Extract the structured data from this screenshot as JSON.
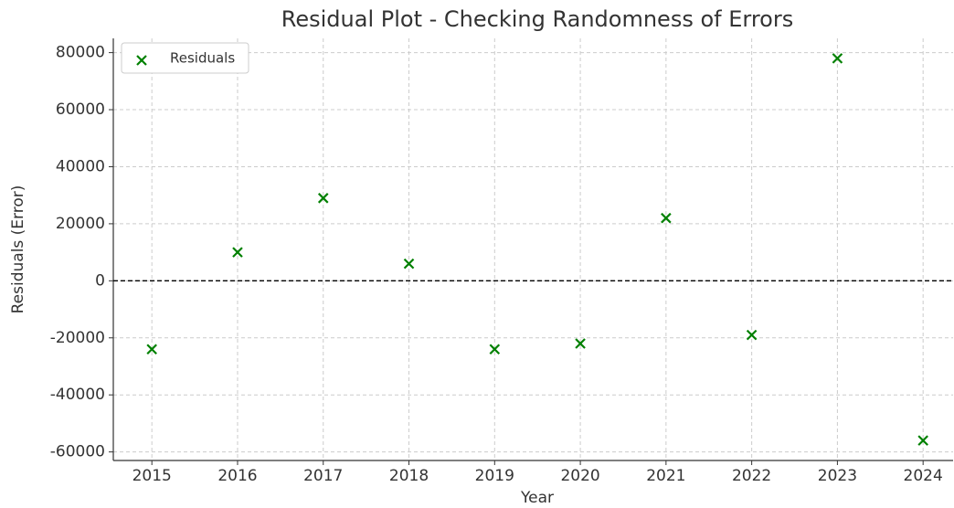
{
  "chart_data": {
    "type": "scatter",
    "title": "Residual Plot - Checking Randomness of Errors",
    "xlabel": "Year",
    "ylabel": "Residuals (Error)",
    "x": [
      2015,
      2016,
      2017,
      2018,
      2019,
      2020,
      2021,
      2022,
      2023,
      2024
    ],
    "series": [
      {
        "name": "Residuals",
        "color": "#008000",
        "marker": "x",
        "values": [
          -24000,
          10000,
          29000,
          6000,
          -24000,
          -22000,
          22000,
          -19000,
          78000,
          -56000
        ]
      }
    ],
    "xlim": [
      2014.55,
      2024.35
    ],
    "xticks": [
      2015,
      2016,
      2017,
      2018,
      2019,
      2020,
      2021,
      2022,
      2023,
      2024
    ],
    "ylim": [
      -63000,
      85000
    ],
    "yticks": [
      -60000,
      -40000,
      -20000,
      0,
      20000,
      40000,
      60000,
      80000
    ],
    "grid": true,
    "legend": "upper left",
    "reference_line": 0
  }
}
